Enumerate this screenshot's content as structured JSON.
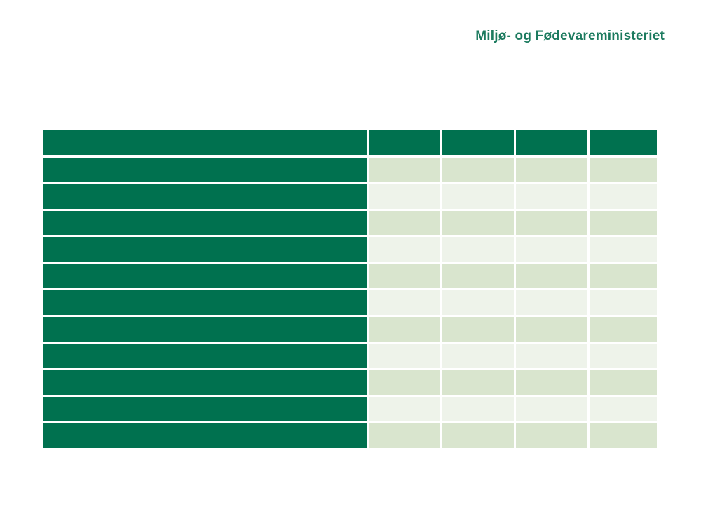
{
  "page": {
    "background": "#FFFFFF"
  },
  "header": {
    "title": "Miljø- og Fødevareministeriet",
    "title_color": "#1B7A5E"
  },
  "table": {
    "columns": 5,
    "header_cells": [
      "",
      "",
      "",
      "",
      ""
    ],
    "rows": [
      {
        "cells": [
          "",
          "",
          "",
          "",
          ""
        ]
      },
      {
        "cells": [
          "",
          "",
          "",
          "",
          ""
        ]
      },
      {
        "cells": [
          "",
          "",
          "",
          "",
          ""
        ]
      },
      {
        "cells": [
          "",
          "",
          "",
          "",
          ""
        ]
      },
      {
        "cells": [
          "",
          "",
          "",
          "",
          ""
        ]
      },
      {
        "cells": [
          "",
          "",
          "",
          "",
          ""
        ]
      },
      {
        "cells": [
          "",
          "",
          "",
          "",
          ""
        ]
      },
      {
        "cells": [
          "",
          "",
          "",
          "",
          ""
        ]
      },
      {
        "cells": [
          "",
          "",
          "",
          "",
          ""
        ]
      },
      {
        "cells": [
          "",
          "",
          "",
          "",
          ""
        ]
      },
      {
        "cells": [
          "",
          "",
          "",
          "",
          ""
        ]
      }
    ],
    "colors": {
      "header_bg": "#00714F",
      "row_label_bg": "#00714F",
      "row_even_bg": "#D9E5CE",
      "row_odd_bg": "#EEF3EA",
      "grid_gap": "#FFFFFF"
    }
  }
}
